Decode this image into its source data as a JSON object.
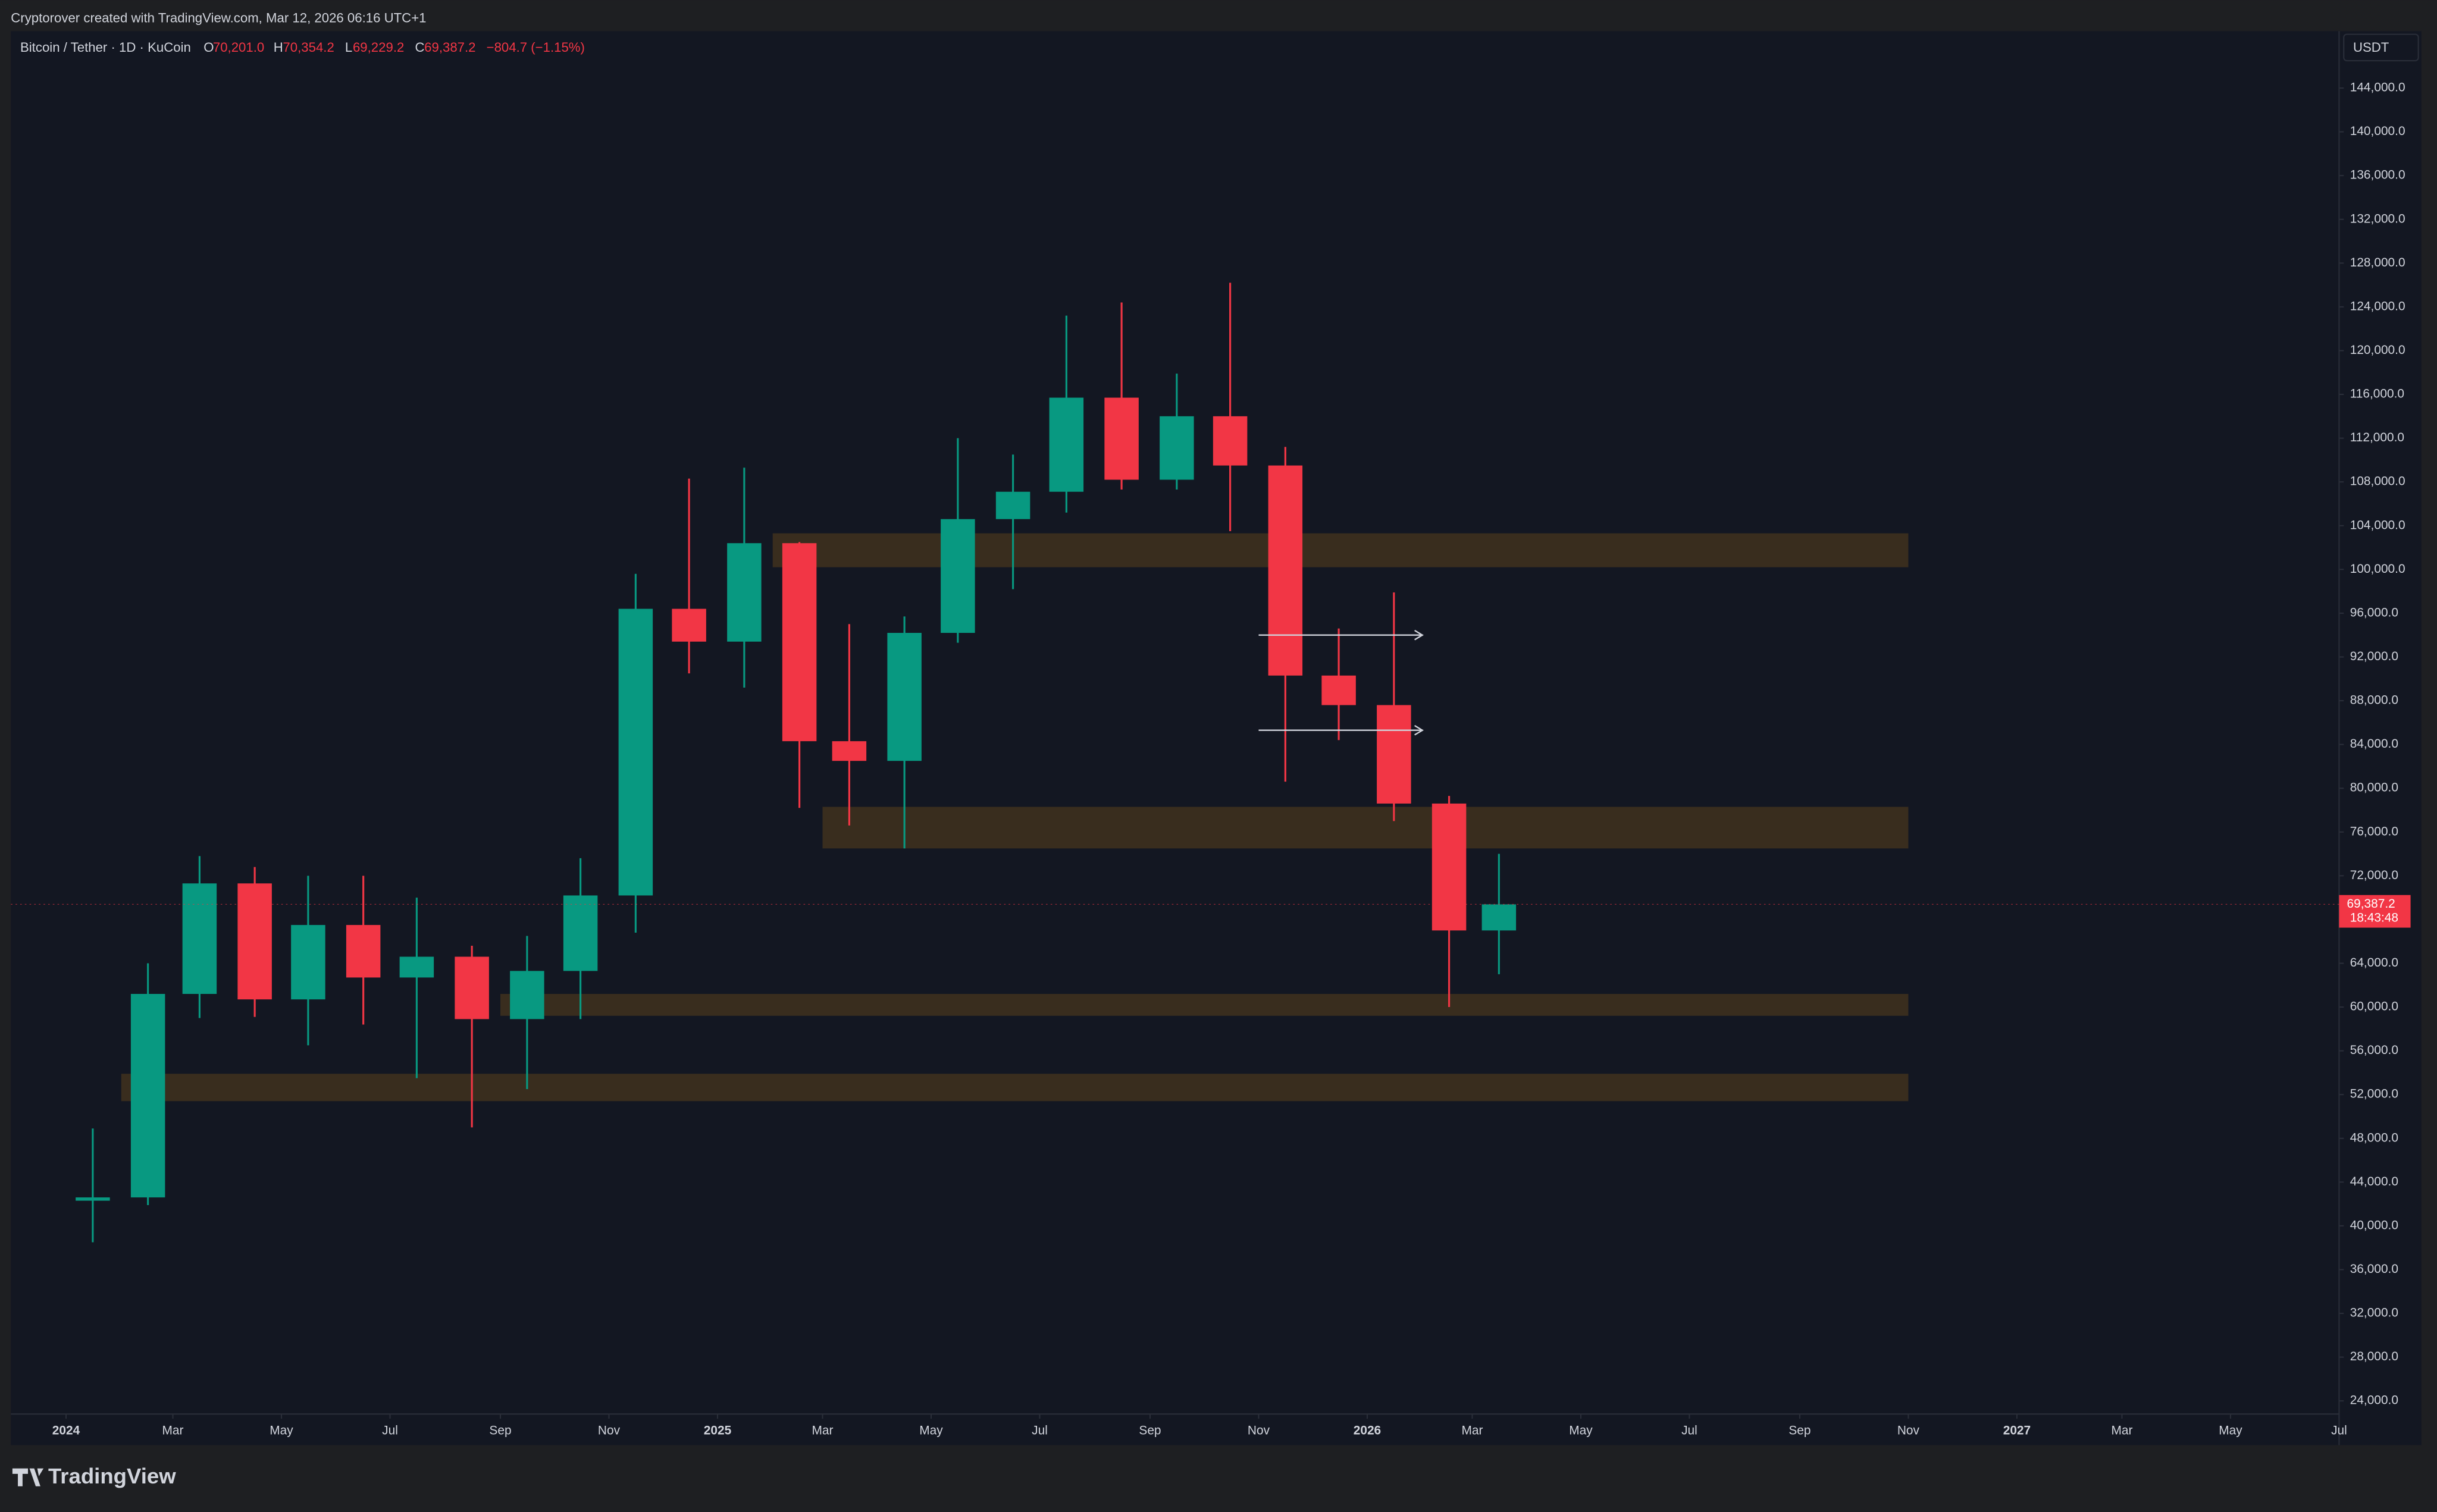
{
  "header": {
    "credit": "Cryptorover created with TradingView.com, Mar 12, 2026 06:16 UTC+1"
  },
  "legend": {
    "symbol": "Bitcoin / Tether · 1D · KuCoin",
    "o_key": "O",
    "open": "70,201.0",
    "h_key": "H",
    "high": "70,354.2",
    "l_key": "L",
    "low": "69,229.2",
    "c_key": "C",
    "close": "69,387.2",
    "change": "−804.7 (−1.15%)"
  },
  "price_axis": {
    "currency": "USDT",
    "last_price": "69,387.2",
    "countdown": "18:43:48"
  },
  "footer": {
    "brand": "TradingView"
  },
  "chart_data": {
    "type": "candlestick",
    "up_color": "#089981",
    "down_color": "#f23645",
    "x": [
      "2024-01",
      "2024-02",
      "2024-03",
      "2024-04",
      "2024-05",
      "2024-06",
      "2024-07",
      "2024-08",
      "2024-09",
      "2024-10",
      "2024-11",
      "2024-12",
      "2025-01",
      "2025-02",
      "2025-03",
      "2025-04",
      "2025-05",
      "2025-06",
      "2025-07",
      "2025-08",
      "2025-09",
      "2025-10",
      "2025-11",
      "2025-12",
      "2026-01",
      "2026-02",
      "2026-03"
    ],
    "open": [
      42300,
      42600,
      61200,
      71300,
      60700,
      67500,
      62700,
      64600,
      58900,
      63300,
      70200,
      96400,
      93400,
      102400,
      84300,
      82500,
      94200,
      104600,
      107100,
      115700,
      108200,
      114000,
      109500,
      90300,
      87600,
      78600,
      67000
    ],
    "high": [
      48900,
      64000,
      73800,
      72800,
      72000,
      72000,
      70000,
      65600,
      66500,
      73600,
      99600,
      108300,
      109300,
      102500,
      95000,
      95700,
      112000,
      110500,
      123200,
      124400,
      117900,
      126200,
      111200,
      94600,
      97900,
      79300,
      74000
    ],
    "low": [
      38500,
      41900,
      59000,
      59100,
      56500,
      58400,
      53500,
      49000,
      52500,
      58900,
      66800,
      90500,
      89200,
      78200,
      76600,
      74500,
      93300,
      98200,
      105200,
      107300,
      107300,
      103500,
      80600,
      84400,
      77000,
      60000,
      63000
    ],
    "close": [
      42600,
      61200,
      71300,
      60700,
      67500,
      62700,
      64600,
      58900,
      63300,
      70200,
      96400,
      93400,
      102400,
      84300,
      82500,
      94200,
      104600,
      107100,
      115700,
      108200,
      114000,
      109500,
      90300,
      87600,
      78600,
      67000,
      69387.2
    ],
    "xlim": [
      "2023-12",
      "2027-07"
    ],
    "xticks": [
      {
        "value": "2024-01",
        "label": "2024"
      },
      {
        "value": "2024-03",
        "label": "Mar"
      },
      {
        "value": "2024-05",
        "label": "May"
      },
      {
        "value": "2024-07",
        "label": "Jul"
      },
      {
        "value": "2024-09",
        "label": "Sep"
      },
      {
        "value": "2024-11",
        "label": "Nov"
      },
      {
        "value": "2025-01",
        "label": "2025"
      },
      {
        "value": "2025-03",
        "label": "Mar"
      },
      {
        "value": "2025-05",
        "label": "May"
      },
      {
        "value": "2025-07",
        "label": "Jul"
      },
      {
        "value": "2025-09",
        "label": "Sep"
      },
      {
        "value": "2025-11",
        "label": "Nov"
      },
      {
        "value": "2026-01",
        "label": "2026"
      },
      {
        "value": "2026-03",
        "label": "Mar"
      },
      {
        "value": "2026-05",
        "label": "May"
      },
      {
        "value": "2026-07",
        "label": "Jul"
      },
      {
        "value": "2026-09",
        "label": "Sep"
      },
      {
        "value": "2026-11",
        "label": "Nov"
      },
      {
        "value": "2027-01",
        "label": "2027"
      },
      {
        "value": "2027-03",
        "label": "Mar"
      },
      {
        "value": "2027-05",
        "label": "May"
      },
      {
        "value": "2027-07",
        "label": "Jul"
      }
    ],
    "ylim": [
      22800,
      149200
    ],
    "yticks": [
      {
        "value": 24000,
        "label": "24,000.0"
      },
      {
        "value": 28000,
        "label": "28,000.0"
      },
      {
        "value": 32000,
        "label": "32,000.0"
      },
      {
        "value": 36000,
        "label": "36,000.0"
      },
      {
        "value": 40000,
        "label": "40,000.0"
      },
      {
        "value": 44000,
        "label": "44,000.0"
      },
      {
        "value": 48000,
        "label": "48,000.0"
      },
      {
        "value": 52000,
        "label": "52,000.0"
      },
      {
        "value": 56000,
        "label": "56,000.0"
      },
      {
        "value": 60000,
        "label": "60,000.0"
      },
      {
        "value": 64000,
        "label": "64,000.0"
      },
      {
        "value": 68000,
        "label": "68,000.0"
      },
      {
        "value": 72000,
        "label": "72,000.0"
      },
      {
        "value": 76000,
        "label": "76,000.0"
      },
      {
        "value": 80000,
        "label": "80,000.0"
      },
      {
        "value": 84000,
        "label": "84,000.0"
      },
      {
        "value": 88000,
        "label": "88,000.0"
      },
      {
        "value": 92000,
        "label": "92,000.0"
      },
      {
        "value": 96000,
        "label": "96,000.0"
      },
      {
        "value": 100000,
        "label": "100,000.0"
      },
      {
        "value": 104000,
        "label": "104,000.0"
      },
      {
        "value": 108000,
        "label": "108,000.0"
      },
      {
        "value": 112000,
        "label": "112,000.0"
      },
      {
        "value": 116000,
        "label": "116,000.0"
      },
      {
        "value": 120000,
        "label": "120,000.0"
      },
      {
        "value": 124000,
        "label": "124,000.0"
      },
      {
        "value": 128000,
        "label": "128,000.0"
      },
      {
        "value": 132000,
        "label": "132,000.0"
      },
      {
        "value": 136000,
        "label": "136,000.0"
      },
      {
        "value": 140000,
        "label": "140,000.0"
      },
      {
        "value": 144000,
        "label": "144,000.0"
      }
    ],
    "zones": [
      {
        "from": "2025-02",
        "to": "2026-11",
        "low": 100200,
        "high": 103300
      },
      {
        "from": "2025-03",
        "to": "2026-11",
        "low": 74500,
        "high": 78300
      },
      {
        "from": "2024-09",
        "to": "2026-11",
        "low": 59200,
        "high": 61200
      },
      {
        "from": "2024-02",
        "to": "2026-11",
        "low": 51400,
        "high": 53900
      }
    ],
    "zone_color": "#3b2e1f",
    "rays": [
      {
        "from": "2025-11",
        "to": "2026-02",
        "value": 94000
      },
      {
        "from": "2025-11",
        "to": "2026-02",
        "value": 85300
      }
    ],
    "grid": false
  }
}
